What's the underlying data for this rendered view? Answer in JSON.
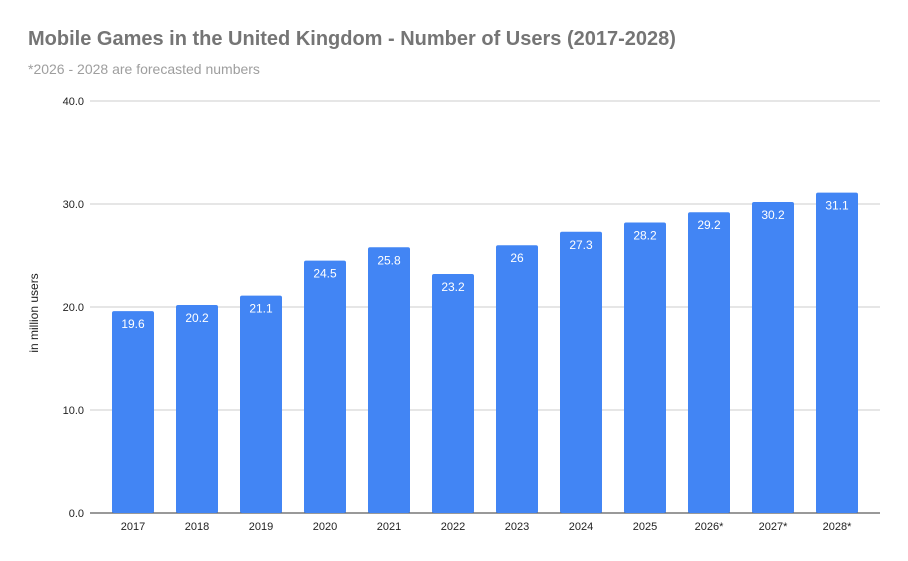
{
  "chart_data": {
    "type": "bar",
    "title": "Mobile Games in the United Kingdom - Number of Users (2017-2028)",
    "subtitle": "*2026 - 2028 are forecasted numbers",
    "xlabel": "",
    "ylabel": "in million users",
    "categories": [
      "2017",
      "2018",
      "2019",
      "2020",
      "2021",
      "2022",
      "2023",
      "2024",
      "2025",
      "2026*",
      "2027*",
      "2028*"
    ],
    "values": [
      19.6,
      20.2,
      21.1,
      24.5,
      25.8,
      23.2,
      26.0,
      27.3,
      28.2,
      29.2,
      30.2,
      31.1
    ],
    "ylim": [
      0,
      40
    ],
    "yticks": [
      "0.0",
      "10.0",
      "20.0",
      "30.0",
      "40.0"
    ],
    "grid": true,
    "data_labels": true,
    "bar_color": "#4285f4",
    "label_color": "#ffffff"
  }
}
